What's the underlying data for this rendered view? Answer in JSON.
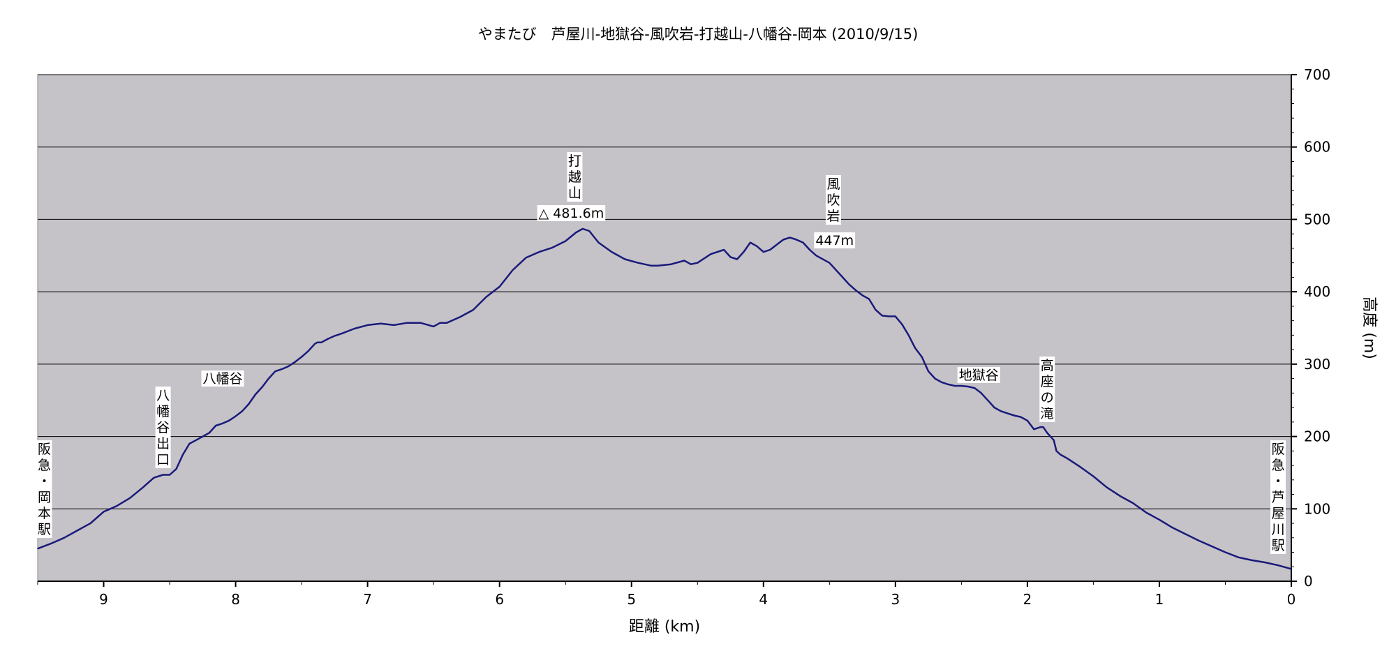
{
  "chart_data": {
    "type": "line",
    "title": "やまたび　芦屋川-地獄谷-風吹岩-打越山-八幡谷-岡本 (2010/9/15)",
    "xlabel": "距離 (km)",
    "ylabel": "高度 (m)",
    "x_reversed": true,
    "xlim": [
      9.5,
      0
    ],
    "ylim": [
      0,
      700
    ],
    "x_ticks": [
      9,
      8,
      7,
      6,
      5,
      4,
      3,
      2,
      1,
      0
    ],
    "y_ticks": [
      0,
      100,
      200,
      300,
      400,
      500,
      600,
      700
    ],
    "grid": "horizontal",
    "plot_background": "#c5c3c8",
    "line_color": "#1a1a7a",
    "series": [
      {
        "x": [
          9.5,
          9.4,
          9.3,
          9.2,
          9.1,
          9.0,
          8.95,
          8.9,
          8.8,
          8.7,
          8.62,
          8.55,
          8.5,
          8.45,
          8.4,
          8.35,
          8.3,
          8.25,
          8.2,
          8.15,
          8.1,
          8.05,
          8.0,
          7.95,
          7.9,
          7.85,
          7.8,
          7.75,
          7.7,
          7.65,
          7.6,
          7.55,
          7.5,
          7.45,
          7.4,
          7.38,
          7.35,
          7.3,
          7.25,
          7.2,
          7.1,
          7.0,
          6.9,
          6.8,
          6.7,
          6.6,
          6.5,
          6.45,
          6.4,
          6.3,
          6.2,
          6.1,
          6.0,
          5.9,
          5.8,
          5.7,
          5.6,
          5.5,
          5.42,
          5.37,
          5.32,
          5.25,
          5.15,
          5.05,
          4.95,
          4.85,
          4.8,
          4.7,
          4.6,
          4.55,
          4.5,
          4.4,
          4.3,
          4.25,
          4.2,
          4.15,
          4.1,
          4.05,
          4.0,
          3.95,
          3.9,
          3.85,
          3.8,
          3.75,
          3.7,
          3.65,
          3.6,
          3.5,
          3.4,
          3.35,
          3.3,
          3.25,
          3.2,
          3.15,
          3.1,
          3.05,
          3.0,
          2.95,
          2.9,
          2.85,
          2.8,
          2.75,
          2.7,
          2.65,
          2.6,
          2.55,
          2.5,
          2.45,
          2.4,
          2.35,
          2.3,
          2.25,
          2.2,
          2.15,
          2.1,
          2.05,
          2.0,
          1.95,
          1.9,
          1.88,
          1.85,
          1.8,
          1.78,
          1.75,
          1.7,
          1.6,
          1.5,
          1.4,
          1.3,
          1.2,
          1.1,
          1.0,
          0.9,
          0.8,
          0.7,
          0.6,
          0.5,
          0.4,
          0.3,
          0.2,
          0.1,
          0.0
        ],
        "y": [
          45,
          52,
          60,
          70,
          80,
          96,
          100,
          104,
          115,
          130,
          143,
          147,
          147,
          155,
          175,
          190,
          195,
          200,
          205,
          215,
          218,
          222,
          228,
          235,
          245,
          258,
          268,
          280,
          290,
          293,
          297,
          303,
          310,
          318,
          328,
          330,
          330,
          335,
          339,
          342,
          349,
          354,
          356,
          354,
          357,
          357,
          352,
          357,
          357,
          365,
          375,
          393,
          407,
          430,
          447,
          455,
          461,
          470,
          482,
          487,
          484,
          468,
          455,
          445,
          440,
          436,
          436,
          438,
          443,
          438,
          440,
          452,
          458,
          448,
          445,
          455,
          468,
          463,
          455,
          458,
          465,
          472,
          475,
          472,
          468,
          458,
          450,
          440,
          420,
          410,
          402,
          395,
          390,
          375,
          367,
          366,
          366,
          355,
          340,
          322,
          310,
          290,
          280,
          275,
          272,
          270,
          270,
          269,
          267,
          260,
          250,
          240,
          235,
          232,
          229,
          227,
          222,
          210,
          213,
          213,
          205,
          195,
          180,
          175,
          170,
          158,
          145,
          130,
          118,
          108,
          95,
          85,
          74,
          65,
          56,
          48,
          40,
          33,
          29,
          26,
          22,
          17
        ]
      }
    ],
    "annotations": [
      {
        "text": "阪急・岡本駅",
        "x": 9.45,
        "y": 45,
        "orientation": "vertical"
      },
      {
        "text": "八幡谷出口",
        "x": 8.55,
        "y": 147,
        "orientation": "vertical"
      },
      {
        "text": "八幡谷",
        "x": 7.9,
        "y": 290,
        "orientation": "horizontal"
      },
      {
        "text": "打越山",
        "x": 5.43,
        "y": 487,
        "orientation": "vertical"
      },
      {
        "text": "△ 481.6m",
        "x": 5.45,
        "y": 487,
        "orientation": "horizontal"
      },
      {
        "text": "風吹岩",
        "x": 3.47,
        "y": 475,
        "orientation": "vertical"
      },
      {
        "text": "447m",
        "x": 3.5,
        "y": 475,
        "orientation": "horizontal"
      },
      {
        "text": "地獄谷",
        "x": 2.35,
        "y": 270,
        "orientation": "horizontal"
      },
      {
        "text": "高座の滝",
        "x": 1.85,
        "y": 213,
        "orientation": "vertical"
      },
      {
        "text": "阪急・芦屋川駅",
        "x": 0.1,
        "y": 22,
        "orientation": "vertical"
      }
    ]
  }
}
